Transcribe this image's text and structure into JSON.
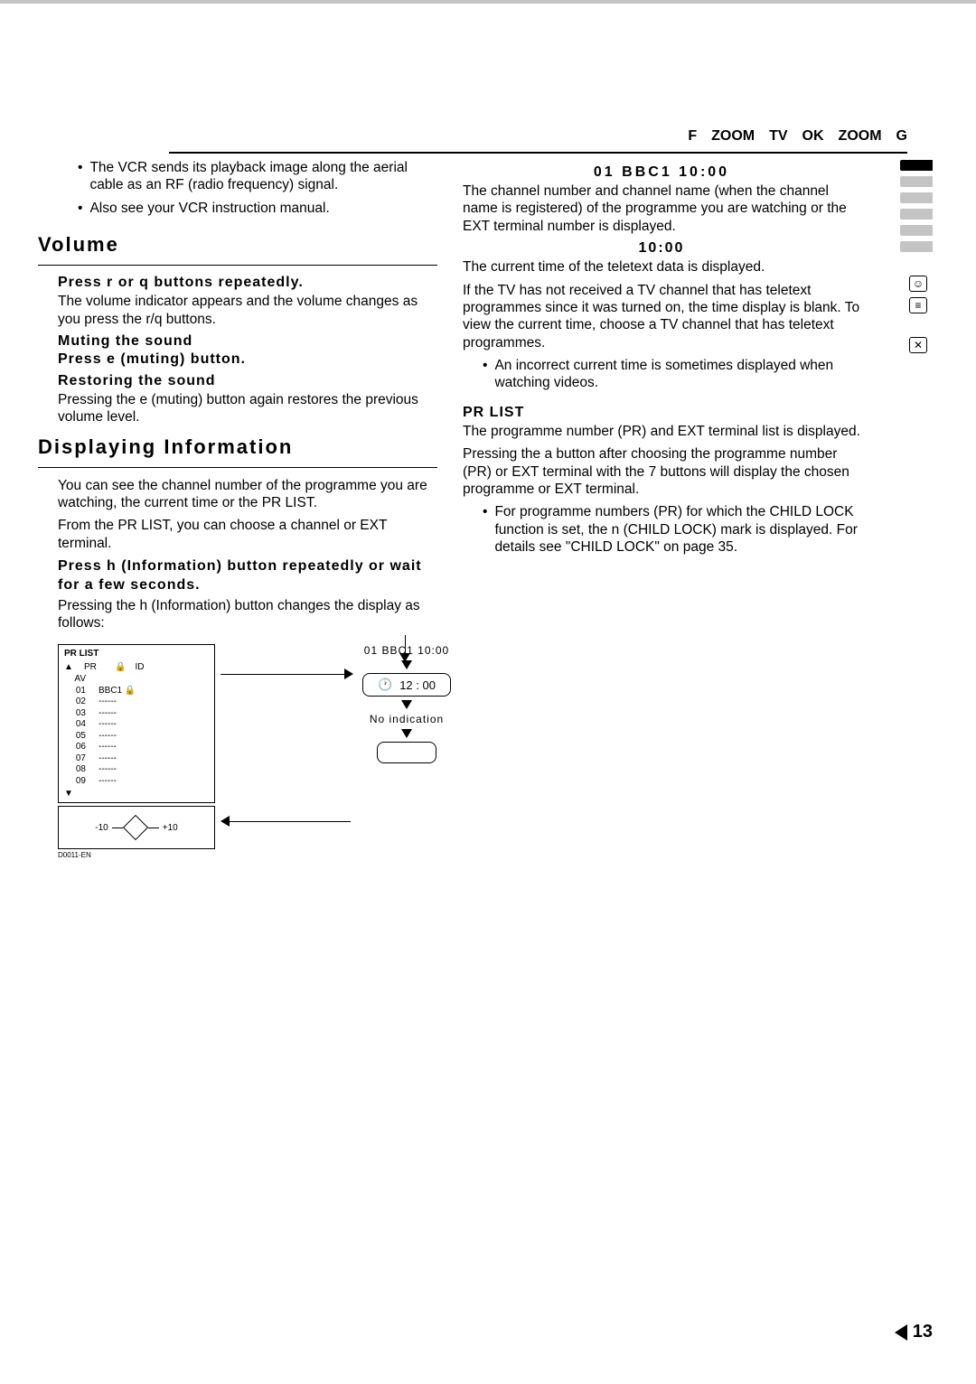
{
  "header": {
    "items": [
      "F",
      "ZOOM",
      "TV",
      "OK",
      "ZOOM",
      "G"
    ]
  },
  "left": {
    "bullet1": "The VCR sends its playback image along the aerial cable as an RF (radio frequency) signal.",
    "bullet2": "Also see your VCR instruction manual.",
    "volume": {
      "title": "Volume",
      "sub1": "Press r or q buttons repeatedly.",
      "p1": "The volume indicator appears and the volume changes as you press the r/q buttons.",
      "sub2": "Muting the sound",
      "sub3": "Press e (muting) button.",
      "sub4": "Restoring the sound",
      "p2": "Pressing the e (muting) button again restores the previous volume level."
    },
    "info": {
      "title": "Displaying Information",
      "p1": "You can see the channel number of the programme you are watching, the current time or the PR LIST.",
      "p2": "From the PR LIST, you can choose a channel or EXT terminal.",
      "sub1": "Press h (Information) button repeatedly or wait for a few seconds.",
      "p3": "Pressing the h (Information) button changes the display as follows:"
    },
    "prlist": {
      "title": "PR LIST",
      "head_pr": "PR",
      "head_id": "ID",
      "rows": [
        {
          "pr": "AV",
          "id": ""
        },
        {
          "pr": "01",
          "id": "BBC1"
        },
        {
          "pr": "02",
          "id": "------"
        },
        {
          "pr": "03",
          "id": "------"
        },
        {
          "pr": "04",
          "id": "------"
        },
        {
          "pr": "05",
          "id": "------"
        },
        {
          "pr": "06",
          "id": "------"
        },
        {
          "pr": "07",
          "id": "------"
        },
        {
          "pr": "08",
          "id": "------"
        },
        {
          "pr": "09",
          "id": "------"
        }
      ],
      "minus": "-10",
      "plus": "+10",
      "ref": "D0011-EN"
    },
    "flow": {
      "node1": "01 BBC1 10:00",
      "node2": "12 : 00",
      "node3_label": "No indication"
    }
  },
  "right": {
    "sub1": "01 BBC1 10:00",
    "p1": "The channel number and channel name (when the channel name is registered) of the programme you are watching or the EXT terminal number is displayed.",
    "sub2": "10:00",
    "p2": "The current time of the teletext data is displayed.",
    "p3": "If the TV has not received a TV channel that has teletext programmes since it was turned on, the time display is blank. To view the current time, choose a TV channel that has teletext programmes.",
    "bullet1": "An incorrect current time is sometimes displayed when watching videos.",
    "sub3": "PR LIST",
    "p4": "The programme number (PR) and EXT terminal list is displayed.",
    "p5": "Pressing the a button after choosing the programme number (PR) or EXT terminal with the 7 buttons will display the chosen programme or EXT terminal.",
    "bullet2": "For programme numbers (PR) for which the CHILD LOCK function is set, the n (CHILD LOCK) mark is displayed. For details see \"CHILD LOCK\" on page 35."
  },
  "pagenum": "13"
}
